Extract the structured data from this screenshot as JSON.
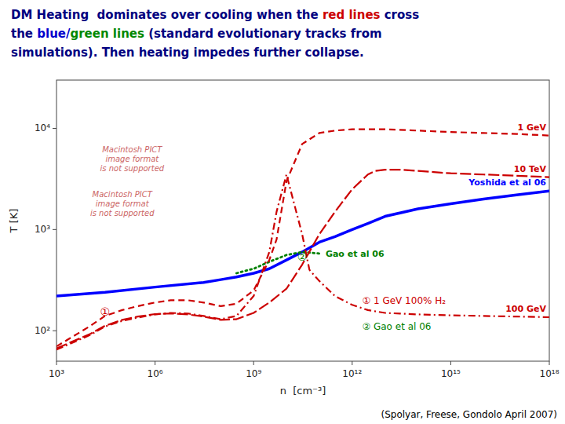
{
  "chart_data": {
    "type": "line",
    "title": [
      [
        {
          "text": "DM Heating  dominates over cooling when the ",
          "color": "#000080"
        },
        {
          "text": "red lines",
          "color": "#cc0000"
        },
        {
          "text": " cross",
          "color": "#000080"
        }
      ],
      [
        {
          "text": "the ",
          "color": "#000080"
        },
        {
          "text": "blue/",
          "color": "#0000cc"
        },
        {
          "text": "green lines",
          "color": "#008800"
        },
        {
          "text": " (standard evolutionary tracks from",
          "color": "#000080"
        }
      ],
      [
        {
          "text": "simulations). Then heating impedes further collapse.",
          "color": "#000080"
        }
      ]
    ],
    "x_label": "n  [cm⁻³]",
    "y_label": "T [K]",
    "log": true,
    "grid": false,
    "xlim": [
      1000.0,
      1e+18
    ],
    "ylim": [
      50,
      30000
    ],
    "xticks": [
      {
        "value": 1000.0,
        "label": "10³"
      },
      {
        "value": 1000000.0,
        "label": "10⁶"
      },
      {
        "value": 1000000000.0,
        "label": "10⁹"
      },
      {
        "value": 1000000000000.0,
        "label": "10¹²"
      },
      {
        "value": 1000000000000000.0,
        "label": "10¹⁵"
      },
      {
        "value": 1e+18,
        "label": "10¹⁸"
      }
    ],
    "yticks": [
      {
        "value": 100,
        "label": "10²"
      },
      {
        "value": 1000,
        "label": "10³"
      },
      {
        "value": 10000,
        "label": "10⁴"
      }
    ],
    "series": [
      {
        "name": "Yoshida et al 06",
        "color": "blue",
        "line_style": "solid",
        "x": [
          1000.0,
          30000.0,
          1000000.0,
          30000000.0,
          100000000.0,
          300000000.0,
          1000000000.0,
          3000000000.0,
          10000000000.0,
          30000000000.0,
          100000000000.0,
          300000000000.0,
          1000000000000.0,
          3000000000000.0,
          10000000000000.0,
          100000000000000.0,
          1000000000000000.0,
          1e+16,
          1e+17,
          1e+18
        ],
        "values": [
          220,
          240,
          270,
          300,
          320,
          340,
          370,
          410,
          500,
          600,
          750,
          850,
          1000,
          1150,
          1350,
          1600,
          1800,
          2000,
          2200,
          2400
        ]
      },
      {
        "name": "Gao et al 06",
        "color": "green",
        "line_style": "dotted",
        "x": [
          300000000.0,
          1000000000.0,
          3000000000.0,
          10000000000.0,
          30000000000.0,
          100000000000.0
        ],
        "values": [
          370,
          410,
          480,
          560,
          600,
          580
        ]
      },
      {
        "name": "1 GeV",
        "color": "#cc0000",
        "line_style": "dashed",
        "x": [
          1000.0,
          10000.0,
          30000.0,
          100000.0,
          300000.0,
          1000000.0,
          3000000.0,
          10000000.0,
          30000000.0,
          100000000.0,
          300000000.0,
          1000000000.0,
          3000000000.0,
          5000000000.0,
          10000000000.0,
          30000000000.0,
          100000000000.0,
          300000000000.0,
          1000000000000.0,
          3000000000000.0,
          5000000000000.0,
          10000000000000.0,
          100000000000000.0,
          1000000000000000.0,
          1e+16,
          1e+17,
          1e+18
        ],
        "values": [
          70,
          110,
          140,
          160,
          175,
          190,
          200,
          200,
          190,
          175,
          185,
          250,
          500,
          800,
          3000,
          7000,
          9000,
          9500,
          9800,
          9800,
          9800,
          9800,
          9500,
          9200,
          9000,
          8800,
          8500
        ]
      },
      {
        "name": "100 GeV",
        "color": "#cc0000",
        "line_style": "dashdot",
        "x": [
          1000.0,
          10000.0,
          30000.0,
          100000.0,
          300000.0,
          1000000.0,
          3000000.0,
          10000000.0,
          30000000.0,
          100000000.0,
          300000000.0,
          1000000000.0,
          3000000000.0,
          5000000000.0,
          10000000000.0,
          30000000000.0,
          50000000000.0,
          100000000000.0,
          300000000000.0,
          1000000000000.0,
          3000000000000.0,
          10000000000000.0,
          100000000000000.0,
          1000000000000000.0,
          1e+16,
          1e+17,
          1e+18
        ],
        "values": [
          65,
          90,
          110,
          125,
          135,
          145,
          150,
          148,
          140,
          130,
          140,
          220,
          600,
          1500,
          3500,
          900,
          400,
          310,
          220,
          180,
          160,
          150,
          145,
          142,
          140,
          138,
          136
        ]
      },
      {
        "name": "10 TeV",
        "color": "#cc0000",
        "line_style": "longdash",
        "x": [
          1000.0,
          10000.0,
          30000.0,
          100000.0,
          300000.0,
          1000000.0,
          3000000.0,
          10000000.0,
          30000000.0,
          100000000.0,
          300000000.0,
          1000000000.0,
          3000000000.0,
          10000000000.0,
          30000000000.0,
          100000000000.0,
          300000000000.0,
          1000000000000.0,
          3000000000000.0,
          5000000000000.0,
          10000000000000.0,
          30000000000000.0,
          100000000000000.0,
          300000000000000.0,
          500000000000000.0,
          1000000000000000.0,
          1e+16,
          1e+17,
          1e+18
        ],
        "values": [
          67,
          92,
          112,
          128,
          138,
          146,
          148,
          145,
          138,
          128,
          130,
          150,
          190,
          260,
          450,
          900,
          1500,
          2500,
          3500,
          3800,
          3900,
          3900,
          3800,
          3700,
          3650,
          3600,
          3500,
          3400,
          3300
        ]
      }
    ],
    "annotations": [
      {
        "text": "②",
        "color": "green",
        "x": 30000000000.0,
        "y": 540
      },
      {
        "text": "①",
        "color": "#cc0000",
        "x": 30000.0,
        "y": 155
      },
      {
        "text": "① 1 GeV 100% H₂",
        "color": "#cc0000",
        "x": 2000000000000.0,
        "y": 200
      },
      {
        "text": "② Gao et al 06",
        "color": "green",
        "x": 2000000000000.0,
        "y": 110
      },
      {
        "text": "Macintosh PICT\nimage format\nis not supported",
        "color": "#cc6666",
        "x": 200000.0,
        "y": 5000
      },
      {
        "text": "Macintosh PICT\nimage format\nis not supported",
        "color": "#cc6666",
        "x": 100000.0,
        "y": 1800
      }
    ],
    "caption": "(Spolyar, Freese, Gondolo April 2007)"
  }
}
